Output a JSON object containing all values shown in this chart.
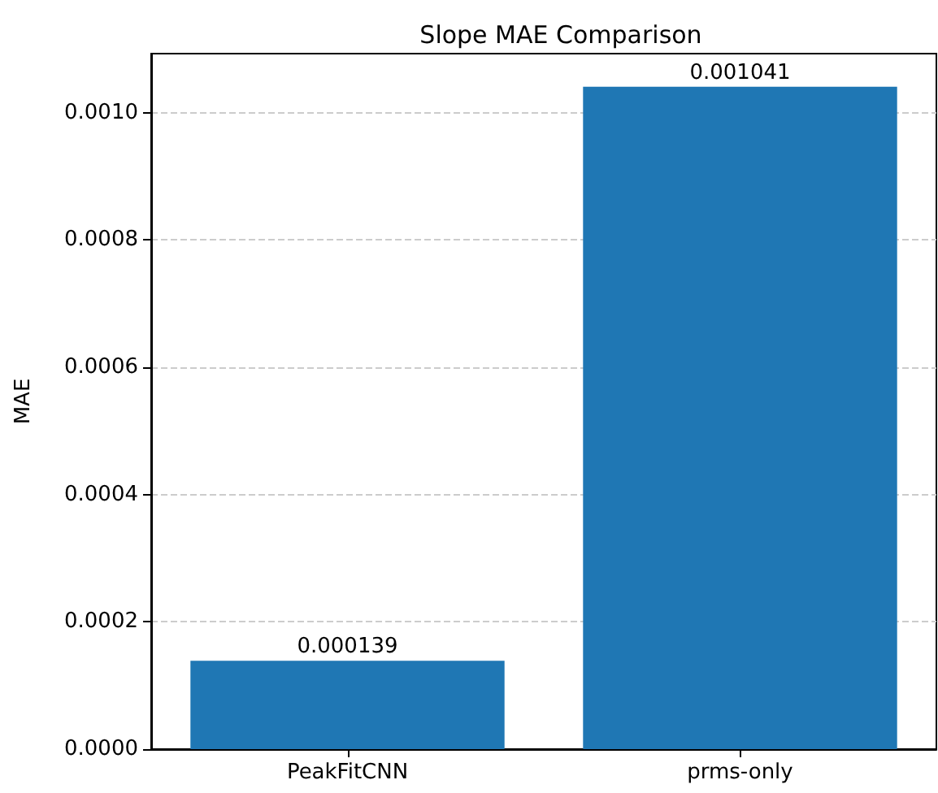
{
  "chart_data": {
    "type": "bar",
    "title": "Slope MAE Comparison",
    "ylabel": "MAE",
    "categories": [
      "PeakFitCNN",
      "prms-only"
    ],
    "values": [
      0.000139,
      0.001041
    ],
    "color": "#1f77b4",
    "ylim": [
      0,
      0.001093
    ],
    "yticks": [
      {
        "value": 0,
        "label": "0.0000"
      },
      {
        "value": 0.0002,
        "label": "0.0002"
      },
      {
        "value": 0.0004,
        "label": "0.0004"
      },
      {
        "value": 0.0006,
        "label": "0.0006"
      },
      {
        "value": 0.0008,
        "label": "0.0008"
      },
      {
        "value": 0.001,
        "label": "0.0010"
      }
    ],
    "grid": "y",
    "data_labels": true
  }
}
